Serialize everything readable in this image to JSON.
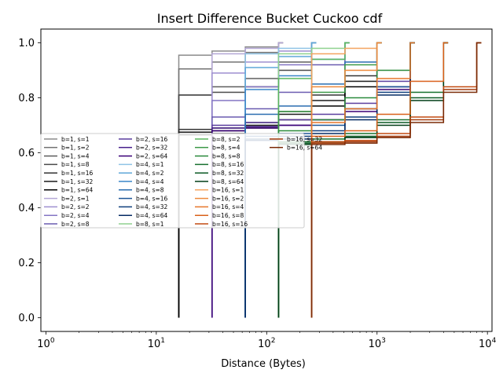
{
  "chart_data": {
    "type": "line",
    "title": "Insert Difference Bucket Cuckoo cdf",
    "xlabel": "Distance (Bytes)",
    "ylabel": "",
    "xscale": "log",
    "xlim": [
      0.9,
      11000
    ],
    "ylim": [
      -0.05,
      1.05
    ],
    "x_ticks": [
      {
        "base": "10",
        "exp": "0",
        "value": 1
      },
      {
        "base": "10",
        "exp": "1",
        "value": 10
      },
      {
        "base": "10",
        "exp": "2",
        "value": 100
      },
      {
        "base": "10",
        "exp": "3",
        "value": 1000
      },
      {
        "base": "10",
        "exp": "4",
        "value": 10000
      }
    ],
    "y_ticks": [
      "0.0",
      "0.2",
      "0.4",
      "0.6",
      "0.8",
      "1.0"
    ],
    "grid": false,
    "legend_placement": "center-left, 4 columns",
    "series": [
      {
        "name": "b=1, s=1",
        "color": "#8c8c8c",
        "x": [
          16,
          16,
          32,
          64,
          128
        ],
        "y": [
          0,
          0.955,
          0.97,
          0.985,
          1.0
        ]
      },
      {
        "name": "b=1, s=2",
        "color": "#737373",
        "x": [
          16,
          16,
          32,
          64,
          128
        ],
        "y": [
          0,
          0.905,
          0.93,
          0.965,
          1.0
        ]
      },
      {
        "name": "b=1, s=4",
        "color": "#5e5e5e",
        "x": [
          16,
          16,
          32,
          64,
          128,
          256
        ],
        "y": [
          0,
          0.81,
          0.84,
          0.87,
          0.93,
          1.0
        ]
      },
      {
        "name": "b=1, s=8",
        "color": "#4a4a4a",
        "x": [
          16,
          16,
          32,
          64,
          128,
          256
        ],
        "y": [
          0,
          0.81,
          0.82,
          0.84,
          0.9,
          1.0
        ]
      },
      {
        "name": "b=1, s=16",
        "color": "#333333",
        "x": [
          16,
          16,
          32,
          64,
          128,
          256,
          512,
          1000
        ],
        "y": [
          0,
          0.685,
          0.69,
          0.71,
          0.75,
          0.81,
          0.88,
          1.0
        ]
      },
      {
        "name": "b=1, s=32",
        "color": "#1a1a1a",
        "x": [
          16,
          16,
          32,
          64,
          128,
          256,
          512,
          1000
        ],
        "y": [
          0,
          0.675,
          0.68,
          0.7,
          0.74,
          0.79,
          0.86,
          1.0
        ]
      },
      {
        "name": "b=1, s=64",
        "color": "#000000",
        "x": [
          16,
          16,
          32,
          64,
          128,
          256,
          512,
          1000
        ],
        "y": [
          0,
          0.665,
          0.67,
          0.69,
          0.72,
          0.77,
          0.84,
          1.0
        ]
      },
      {
        "name": "b=2, s=1",
        "color": "#b4a7d6",
        "x": [
          32,
          32,
          64,
          128
        ],
        "y": [
          0,
          0.96,
          0.98,
          1.0
        ]
      },
      {
        "name": "b=2, s=2",
        "color": "#9e8fd0",
        "x": [
          32,
          32,
          64,
          128,
          256
        ],
        "y": [
          0,
          0.89,
          0.93,
          0.97,
          1.0
        ]
      },
      {
        "name": "b=2, s=4",
        "color": "#8475c4",
        "x": [
          32,
          32,
          64,
          128,
          256
        ],
        "y": [
          0,
          0.79,
          0.84,
          0.92,
          1.0
        ]
      },
      {
        "name": "b=2, s=8",
        "color": "#6a5bb0",
        "x": [
          32,
          32,
          64,
          128,
          256,
          512
        ],
        "y": [
          0,
          0.73,
          0.76,
          0.82,
          0.92,
          1.0
        ]
      },
      {
        "name": "b=2, s=16",
        "color": "#5a3d9e",
        "x": [
          32,
          32,
          64,
          128,
          256,
          512,
          1000,
          2000
        ],
        "y": [
          0,
          0.7,
          0.71,
          0.72,
          0.74,
          0.78,
          0.86,
          1.0
        ]
      },
      {
        "name": "b=2, s=32",
        "color": "#48208c",
        "x": [
          32,
          32,
          64,
          128,
          256,
          512,
          1000,
          2000
        ],
        "y": [
          0,
          0.69,
          0.695,
          0.7,
          0.72,
          0.76,
          0.84,
          1.0
        ]
      },
      {
        "name": "b=2, s=64",
        "color": "#3a0077",
        "x": [
          32,
          32,
          64,
          128,
          256,
          512,
          1000,
          2000
        ],
        "y": [
          0,
          0.68,
          0.69,
          0.7,
          0.72,
          0.75,
          0.83,
          1.0
        ]
      },
      {
        "name": "b=4, s=1",
        "color": "#8fc3e6",
        "x": [
          64,
          64,
          128,
          256
        ],
        "y": [
          0,
          0.96,
          0.98,
          1.0
        ]
      },
      {
        "name": "b=4, s=2",
        "color": "#5ea7d8",
        "x": [
          64,
          64,
          128,
          256
        ],
        "y": [
          0,
          0.91,
          0.95,
          1.0
        ]
      },
      {
        "name": "b=4, s=4",
        "color": "#3a86c8",
        "x": [
          64,
          64,
          128,
          256,
          512
        ],
        "y": [
          0,
          0.83,
          0.88,
          0.94,
          1.0
        ]
      },
      {
        "name": "b=4, s=8",
        "color": "#2a6db0",
        "x": [
          64,
          64,
          128,
          256,
          512,
          1000
        ],
        "y": [
          0,
          0.74,
          0.77,
          0.85,
          0.93,
          1.0
        ]
      },
      {
        "name": "b=4, s=16",
        "color": "#1c5596",
        "x": [
          64,
          64,
          128,
          256,
          512,
          1000,
          2000
        ],
        "y": [
          0,
          0.66,
          0.67,
          0.7,
          0.76,
          0.84,
          1.0
        ]
      },
      {
        "name": "b=4, s=32",
        "color": "#0f3f7d",
        "x": [
          64,
          64,
          128,
          256,
          512,
          1000,
          2000
        ],
        "y": [
          0,
          0.65,
          0.66,
          0.68,
          0.73,
          0.82,
          1.0
        ]
      },
      {
        "name": "b=4, s=64",
        "color": "#042a63",
        "x": [
          64,
          64,
          128,
          256,
          512,
          1000,
          2000
        ],
        "y": [
          0,
          0.645,
          0.65,
          0.67,
          0.72,
          0.81,
          1.0
        ]
      },
      {
        "name": "b=8, s=1",
        "color": "#8fd18f",
        "x": [
          128,
          128,
          256,
          512
        ],
        "y": [
          0,
          0.96,
          0.98,
          1.0
        ]
      },
      {
        "name": "b=8, s=2",
        "color": "#5ab55e",
        "x": [
          128,
          128,
          256,
          512
        ],
        "y": [
          0,
          0.87,
          0.94,
          1.0
        ]
      },
      {
        "name": "b=8, s=4",
        "color": "#3d9a48",
        "x": [
          128,
          128,
          256,
          512,
          1000
        ],
        "y": [
          0,
          0.75,
          0.82,
          0.92,
          1.0
        ]
      },
      {
        "name": "b=8, s=8",
        "color": "#2a8a3c",
        "x": [
          128,
          128,
          256,
          512,
          1000,
          2000
        ],
        "y": [
          0,
          0.68,
          0.72,
          0.8,
          0.9,
          1.0
        ]
      },
      {
        "name": "b=8, s=16",
        "color": "#17702f",
        "x": [
          128,
          128,
          256,
          512,
          1000,
          2000,
          4000
        ],
        "y": [
          0,
          0.64,
          0.65,
          0.67,
          0.72,
          0.82,
          1.0
        ]
      },
      {
        "name": "b=8, s=32",
        "color": "#0a5a24",
        "x": [
          128,
          128,
          256,
          512,
          1000,
          2000,
          4000
        ],
        "y": [
          0,
          0.635,
          0.64,
          0.66,
          0.71,
          0.8,
          1.0
        ]
      },
      {
        "name": "b=8, s=64",
        "color": "#003d16",
        "x": [
          128,
          128,
          256,
          512,
          1000,
          2000,
          4000
        ],
        "y": [
          0,
          0.63,
          0.635,
          0.655,
          0.7,
          0.79,
          1.0
        ]
      },
      {
        "name": "b=16, s=1",
        "color": "#f4a460",
        "x": [
          256,
          256,
          512,
          1000
        ],
        "y": [
          0,
          0.96,
          0.98,
          1.0
        ]
      },
      {
        "name": "b=16, s=2",
        "color": "#ee8a3c",
        "x": [
          256,
          256,
          512,
          1000
        ],
        "y": [
          0,
          0.84,
          0.9,
          1.0
        ]
      },
      {
        "name": "b=16, s=4",
        "color": "#e6762a",
        "x": [
          256,
          256,
          512,
          1000,
          2000
        ],
        "y": [
          0,
          0.71,
          0.76,
          0.87,
          1.0
        ]
      },
      {
        "name": "b=16, s=8",
        "color": "#d9601a",
        "x": [
          256,
          256,
          512,
          1000,
          2000,
          4000
        ],
        "y": [
          0,
          0.66,
          0.68,
          0.74,
          0.86,
          1.0
        ]
      },
      {
        "name": "b=16, s=16",
        "color": "#c24a10",
        "x": [
          256,
          256,
          512,
          1000,
          2000,
          4000,
          8000
        ],
        "y": [
          0,
          0.64,
          0.645,
          0.67,
          0.73,
          0.84,
          1.0
        ]
      },
      {
        "name": "b=16, s=32",
        "color": "#a33a0c",
        "x": [
          256,
          256,
          512,
          1000,
          2000,
          4000,
          8000
        ],
        "y": [
          0,
          0.635,
          0.64,
          0.66,
          0.72,
          0.83,
          1.0
        ]
      },
      {
        "name": "b=16, s=64",
        "color": "#7a2a06",
        "x": [
          256,
          256,
          512,
          1000,
          2000,
          4000,
          8000
        ],
        "y": [
          0,
          0.63,
          0.635,
          0.655,
          0.71,
          0.82,
          1.0
        ]
      }
    ]
  }
}
